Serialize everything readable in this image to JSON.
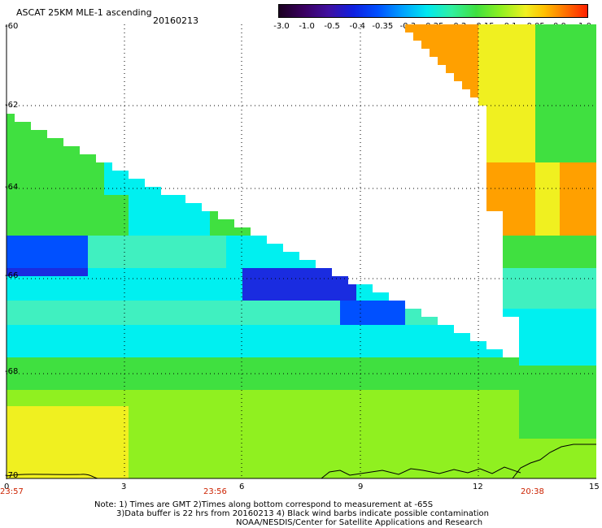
{
  "header": {
    "title": "ASCAT 25KM MLE-1 ascending",
    "date": "20160213"
  },
  "colorbar": {
    "labels": [
      "-3.0",
      "-1.0",
      "-0.5",
      "-0.4",
      "-0.35",
      "-0.3",
      "-0.25",
      "-0.2",
      "-0.15",
      "-0.1",
      "-0.05",
      "0.0",
      "1.0"
    ],
    "colors": [
      "#2a0030",
      "#4a0080",
      "#1a10d0",
      "#0050ff",
      "#00a0ff",
      "#00e8f0",
      "#30f0a0",
      "#50e030",
      "#80ee20",
      "#e0f020",
      "#ffc000",
      "#ff7000",
      "#ff2000"
    ]
  },
  "axes": {
    "y_ticks": [
      "-60",
      "-62",
      "-64",
      "-66",
      "-68",
      "-70"
    ],
    "x_ticks": [
      "0",
      "3",
      "6",
      "9",
      "12",
      "15"
    ],
    "time_labels": [
      "23:57",
      "23:56",
      "20:38"
    ]
  },
  "notes": [
    "Note: 1) Times are GMT 2)Times along bottom correspond to measurement at -65S",
    "3)Data buffer is 22 hrs from 20160213 4) Black wind barbs indicate possible contamination",
    "NOAA/NESDIS/Center for Satellite Applications and Research"
  ],
  "field": {
    "variable": "MLE",
    "palette": {
      "deep_blue": "#1a2ce0",
      "blue": "#0050ff",
      "cyan": "#00f0f0",
      "aqua": "#40f0c0",
      "green": "#40e040",
      "lime": "#90f020",
      "yellow": "#f0f020",
      "orange": "#ffa000"
    }
  }
}
